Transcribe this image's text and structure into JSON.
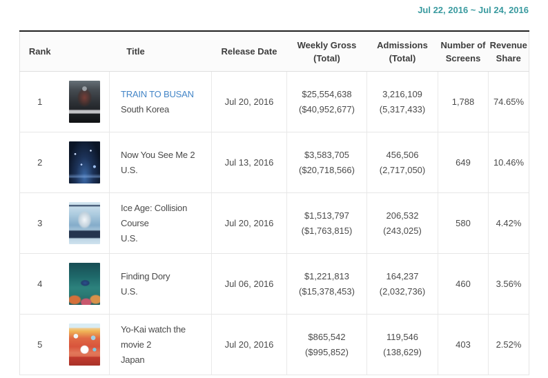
{
  "page": {
    "date_range": "Jul 22, 2016 ~ Jul 24, 2016"
  },
  "colors": {
    "accent_teal": "#399a9f",
    "link_blue": "#4385c7"
  },
  "table": {
    "headers": {
      "rank": "Rank",
      "title": "Title",
      "release_date": "Release Date",
      "weekly_gross": [
        "Weekly Gross",
        "(Total)"
      ],
      "admissions": [
        "Admissions",
        "(Total)"
      ],
      "screens": [
        "Number of",
        "Screens"
      ],
      "share": [
        "Revenue",
        "Share"
      ]
    },
    "rows": [
      {
        "rank": "1",
        "poster_alt": "train-to-busan-poster",
        "title": "TRAIN TO BUSAN",
        "country": "South Korea",
        "release_date": "Jul 20, 2016",
        "weekly_gross": "$25,554,638",
        "total_gross": "($40,952,677)",
        "admissions": "3,216,109",
        "total_admissions": "(5,317,433)",
        "screens": "1,788",
        "share": "74.65%"
      },
      {
        "rank": "2",
        "poster_alt": "now-you-see-me-2-poster",
        "title": "Now You See Me 2",
        "country": "U.S.",
        "release_date": "Jul 13, 2016",
        "weekly_gross": "$3,583,705",
        "total_gross": "($20,718,566)",
        "admissions": "456,506",
        "total_admissions": "(2,717,050)",
        "screens": "649",
        "share": "10.46%"
      },
      {
        "rank": "3",
        "poster_alt": "ice-age-collision-course-poster",
        "title": "Ice Age: Collision Course",
        "country": "U.S.",
        "release_date": "Jul 20, 2016",
        "weekly_gross": "$1,513,797",
        "total_gross": "($1,763,815)",
        "admissions": "206,532",
        "total_admissions": "(243,025)",
        "screens": "580",
        "share": "4.42%"
      },
      {
        "rank": "4",
        "poster_alt": "finding-dory-poster",
        "title": "Finding Dory",
        "country": "U.S.",
        "release_date": "Jul 06, 2016",
        "weekly_gross": "$1,221,813",
        "total_gross": "($15,378,453)",
        "admissions": "164,237",
        "total_admissions": "(2,032,736)",
        "screens": "460",
        "share": "3.56%"
      },
      {
        "rank": "5",
        "poster_alt": "yo-kai-watch-the-movie-2-poster",
        "title": "Yo-Kai watch the movie 2",
        "country": "Japan",
        "release_date": "Jul 20, 2016",
        "weekly_gross": "$865,542",
        "total_gross": "($995,852)",
        "admissions": "119,546",
        "total_admissions": "(138,629)",
        "screens": "403",
        "share": "2.52%"
      }
    ]
  }
}
